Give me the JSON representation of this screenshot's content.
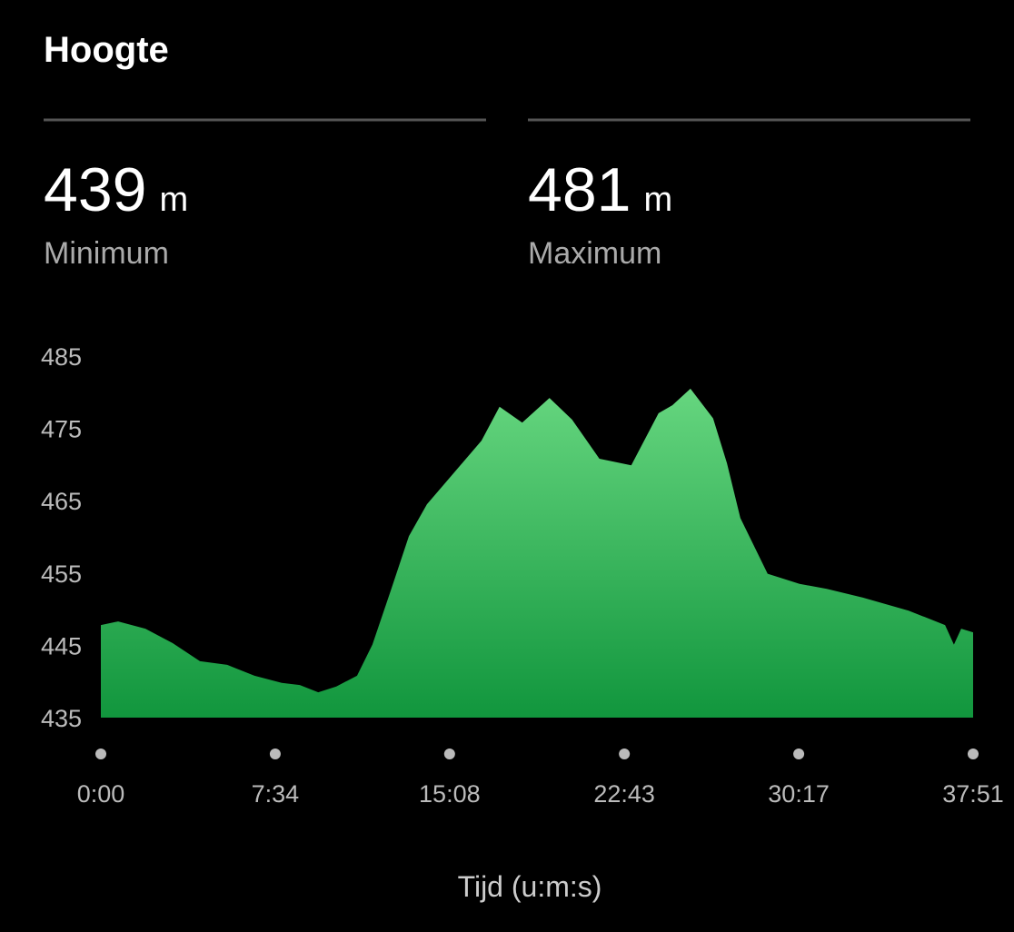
{
  "header": {
    "title": "Hoogte"
  },
  "stats": [
    {
      "value": 439,
      "unit": "m",
      "label": "Minimum"
    },
    {
      "value": 481,
      "unit": "m",
      "label": "Maximum"
    }
  ],
  "chart_data": {
    "type": "area",
    "x_label": "Tijd (u:m:s)",
    "x": [
      0,
      45,
      116,
      187,
      258,
      329,
      400,
      471,
      518,
      566,
      613,
      667,
      707,
      755,
      802,
      849,
      920,
      991,
      1038,
      1097,
      1168,
      1227,
      1298,
      1381,
      1452,
      1488,
      1535,
      1594,
      1630,
      1665,
      1736,
      1819,
      1890,
      1984,
      2103,
      2198,
      2221,
      2240,
      2271
    ],
    "values": [
      447.8,
      448.3,
      447.3,
      445.3,
      442.8,
      442.3,
      440.8,
      439.8,
      439.5,
      438.5,
      439.3,
      440.8,
      445.1,
      452.6,
      460.1,
      464.5,
      468.9,
      473.3,
      478,
      475.8,
      479.2,
      476.2,
      470.8,
      469.9,
      477.1,
      478.2,
      480.5,
      476.4,
      470.2,
      462.6,
      454.9,
      453.5,
      452.8,
      451.6,
      449.8,
      447.8,
      445.1,
      447.3,
      446.8
    ],
    "color": "#2fb457",
    "xlim": [
      0,
      2271
    ],
    "xticks": [
      {
        "value": 0,
        "label": "0:00"
      },
      {
        "value": 454,
        "label": "7:34"
      },
      {
        "value": 908,
        "label": "15:08"
      },
      {
        "value": 1363,
        "label": "22:43"
      },
      {
        "value": 1817,
        "label": "30:17"
      },
      {
        "value": 2271,
        "label": "37:51"
      }
    ],
    "ylim": [
      435,
      485
    ],
    "yticks": [
      435,
      445,
      455,
      465,
      475,
      485
    ]
  }
}
